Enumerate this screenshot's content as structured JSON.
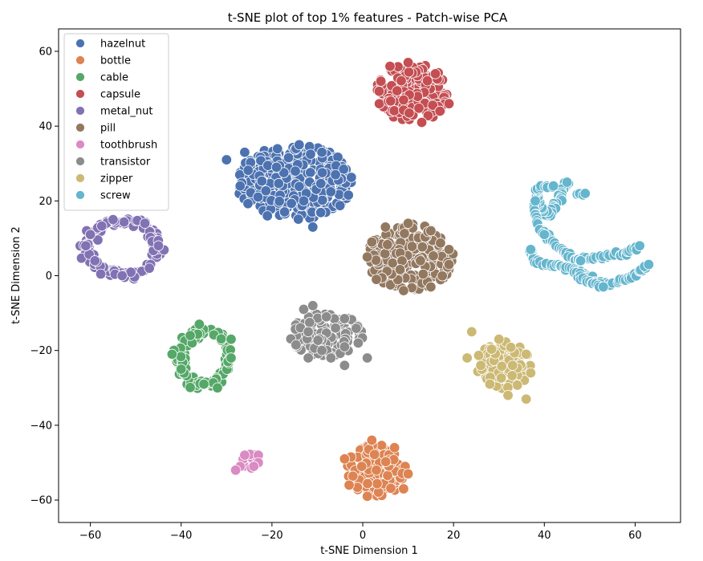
{
  "chart_data": {
    "type": "scatter",
    "title": "t-SNE plot of top 1% features - Patch-wise PCA",
    "xlabel": "t-SNE Dimension 1",
    "ylabel": "t-SNE Dimension 2",
    "xlim": [
      -67,
      70
    ],
    "ylim": [
      -66,
      66
    ],
    "xticks": [
      -60,
      -40,
      -20,
      0,
      20,
      40,
      60
    ],
    "yticks": [
      -60,
      -40,
      -20,
      0,
      20,
      40,
      60
    ],
    "grid": false,
    "legend_position": "upper left",
    "series": [
      {
        "name": "hazelnut",
        "color": "#4c72b0",
        "cluster": {
          "shape": "blob",
          "cx": -15,
          "cy": 25,
          "rx": 13,
          "ry": 10
        },
        "anchor_points": [
          [
            -30,
            31
          ],
          [
            -26,
            33
          ],
          [
            -21,
            16
          ],
          [
            -14,
            35
          ],
          [
            -11,
            13
          ],
          [
            -9,
            33
          ],
          [
            -6,
            27
          ],
          [
            -13,
            20
          ],
          [
            -27,
            24
          ],
          [
            -19,
            29
          ]
        ]
      },
      {
        "name": "bottle",
        "color": "#dd8452",
        "cluster": {
          "shape": "blob",
          "cx": 3,
          "cy": -52,
          "rx": 6.5,
          "ry": 7
        },
        "anchor_points": [
          [
            2,
            -44
          ],
          [
            -4,
            -49
          ],
          [
            -3,
            -56
          ],
          [
            1,
            -59
          ],
          [
            9,
            -57
          ],
          [
            10,
            -53
          ],
          [
            7,
            -46
          ],
          [
            3,
            -52
          ]
        ]
      },
      {
        "name": "cable",
        "color": "#55a868",
        "cluster": {
          "shape": "ring",
          "cx": -35,
          "cy": -22,
          "rx": 5.5,
          "ry": 7
        },
        "anchor_points": [
          [
            -42,
            -21
          ],
          [
            -36,
            -13
          ],
          [
            -29,
            -17
          ],
          [
            -29,
            -22
          ],
          [
            -32,
            -30
          ],
          [
            -35,
            -29
          ],
          [
            -40,
            -25
          ],
          [
            -38,
            -16
          ]
        ]
      },
      {
        "name": "capsule",
        "color": "#c44e52",
        "cluster": {
          "shape": "blob",
          "cx": 11,
          "cy": 49,
          "rx": 8,
          "ry": 8
        },
        "anchor_points": [
          [
            4,
            52
          ],
          [
            6,
            56
          ],
          [
            10,
            57
          ],
          [
            13,
            41
          ],
          [
            17,
            44
          ],
          [
            19,
            46
          ],
          [
            16,
            54
          ],
          [
            9,
            47
          ]
        ]
      },
      {
        "name": "metal_nut",
        "color": "#8172b3",
        "cluster": {
          "shape": "ring",
          "cx": -53,
          "cy": 7.5,
          "rx": 8,
          "ry": 7
        },
        "anchor_points": [
          [
            -61,
            8
          ],
          [
            -60,
            11
          ],
          [
            -55,
            15
          ],
          [
            -48,
            14
          ],
          [
            -45,
            8
          ],
          [
            -47,
            2
          ],
          [
            -53,
            0
          ],
          [
            -59,
            4
          ]
        ]
      },
      {
        "name": "pill",
        "color": "#937860",
        "cluster": {
          "shape": "blob",
          "cx": 10.5,
          "cy": 5,
          "rx": 9.5,
          "ry": 9
        },
        "anchor_points": [
          [
            1,
            5
          ],
          [
            2,
            9
          ],
          [
            5,
            13
          ],
          [
            10,
            14
          ],
          [
            15,
            12
          ],
          [
            19,
            7
          ],
          [
            19,
            3
          ],
          [
            15,
            -3
          ],
          [
            9,
            -4
          ],
          [
            3,
            -1
          ]
        ]
      },
      {
        "name": "toothbrush",
        "color": "#da8bc3",
        "cluster": {
          "shape": "blob",
          "cx": -25,
          "cy": -49.5,
          "rx": 2,
          "ry": 2
        },
        "anchor_points": [
          [
            -27,
            -51
          ],
          [
            -28,
            -52
          ],
          [
            -26,
            -48
          ],
          [
            -23,
            -48
          ],
          [
            -23,
            -50
          ],
          [
            -24,
            -51
          ]
        ]
      },
      {
        "name": "transistor",
        "color": "#8c8c8c",
        "cluster": {
          "shape": "blob",
          "cx": -8,
          "cy": -16,
          "rx": 8,
          "ry": 6
        },
        "anchor_points": [
          [
            -13,
            -9
          ],
          [
            -11,
            -8
          ],
          [
            -8,
            -11
          ],
          [
            -12,
            -15
          ],
          [
            -9,
            -20
          ],
          [
            -12,
            -22
          ],
          [
            -4,
            -19
          ],
          [
            -1,
            -18
          ],
          [
            1,
            -22
          ],
          [
            -4,
            -24
          ],
          [
            -7,
            -22
          ],
          [
            -6,
            -14
          ]
        ]
      },
      {
        "name": "zipper",
        "color": "#ccb974",
        "cluster": {
          "shape": "blob",
          "cx": 31,
          "cy": -24,
          "rx": 6,
          "ry": 6.5
        },
        "anchor_points": [
          [
            24,
            -15
          ],
          [
            23,
            -22
          ],
          [
            26,
            -24
          ],
          [
            28,
            -29
          ],
          [
            32,
            -32
          ],
          [
            36,
            -33
          ],
          [
            37,
            -26
          ],
          [
            36,
            -21
          ],
          [
            30,
            -17
          ],
          [
            33,
            -24
          ]
        ]
      },
      {
        "name": "screw",
        "color": "#64b5cd",
        "cluster": {
          "shape": "curves",
          "paths": [
            [
              [
                45,
                25
              ],
              [
                43,
                20
              ],
              [
                41,
                16
              ],
              [
                39,
                19
              ],
              [
                38,
                23
              ],
              [
                40,
                24
              ],
              [
                42,
                24
              ]
            ],
            [
              [
                38,
                19
              ],
              [
                38,
                15
              ],
              [
                40,
                11
              ],
              [
                42,
                9
              ],
              [
                44,
                7
              ],
              [
                46,
                5
              ],
              [
                48,
                4
              ],
              [
                50,
                4.5
              ],
              [
                52,
                5
              ],
              [
                55,
                5.5
              ],
              [
                58,
                6
              ],
              [
                61,
                8
              ]
            ],
            [
              [
                37,
                7
              ],
              [
                38,
                4
              ],
              [
                40,
                3
              ],
              [
                43,
                2.5
              ],
              [
                46,
                2
              ],
              [
                49,
                0
              ],
              [
                52,
                -2
              ],
              [
                55,
                -2
              ],
              [
                58,
                -1
              ],
              [
                61,
                1
              ],
              [
                63,
                3
              ]
            ],
            [
              [
                47,
                22
              ],
              [
                49,
                22
              ]
            ],
            [
              [
                47,
                1
              ],
              [
                49,
                -1
              ],
              [
                51,
                -2.5
              ],
              [
                53,
                -3
              ]
            ]
          ]
        },
        "anchor_points": [
          [
            45,
            25
          ],
          [
            49,
            22
          ],
          [
            38,
            20
          ],
          [
            37,
            7
          ],
          [
            63,
            3
          ],
          [
            61,
            8
          ],
          [
            53,
            -3
          ],
          [
            48,
            4
          ],
          [
            40,
            11
          ]
        ]
      }
    ]
  }
}
